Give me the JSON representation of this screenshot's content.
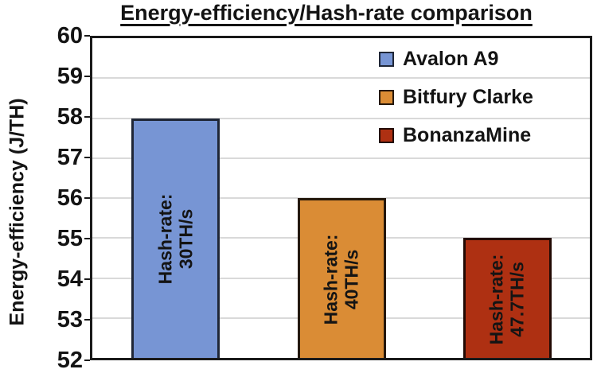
{
  "title": "Energy-efficiency/Hash-rate comparison",
  "chart_data": {
    "type": "bar",
    "title": "Energy-efficiency/Hash-rate comparison",
    "xlabel": "",
    "ylabel": "Energy-efficiency (J/TH)",
    "ylim": [
      52,
      60
    ],
    "ytick_step": 1,
    "ytick_labels": [
      "60",
      "59",
      "58",
      "57",
      "56",
      "55",
      "54",
      "53",
      "52"
    ],
    "grid": true,
    "gridline_color": "#d9d9d9",
    "axis_color": "#1a1a1a",
    "legend_position": "upper right",
    "categories": [
      "Avalon A9",
      "Bitfury Clarke",
      "BonanzaMine"
    ],
    "series": [
      {
        "name": "Avalon A9",
        "value": 58,
        "bar_label_line1": "Hash-rate:",
        "bar_label_line2": "30TH/s",
        "hash_rate": "30TH/s",
        "color": "#7795D4",
        "border_color": "#1f2636"
      },
      {
        "name": "Bitfury Clarke",
        "value": 56,
        "bar_label_line1": "Hash-rate:",
        "bar_label_line2": "40TH/s",
        "hash_rate": "40TH/s",
        "color": "#DA8C35",
        "border_color": "#24170a"
      },
      {
        "name": "BonanzaMine",
        "value": 55,
        "bar_label_line1": "Hash-rate:",
        "bar_label_line2": "47.7TH/s",
        "hash_rate": "47.7TH/s",
        "color": "#AE3012",
        "border_color": "#220a04"
      }
    ]
  }
}
